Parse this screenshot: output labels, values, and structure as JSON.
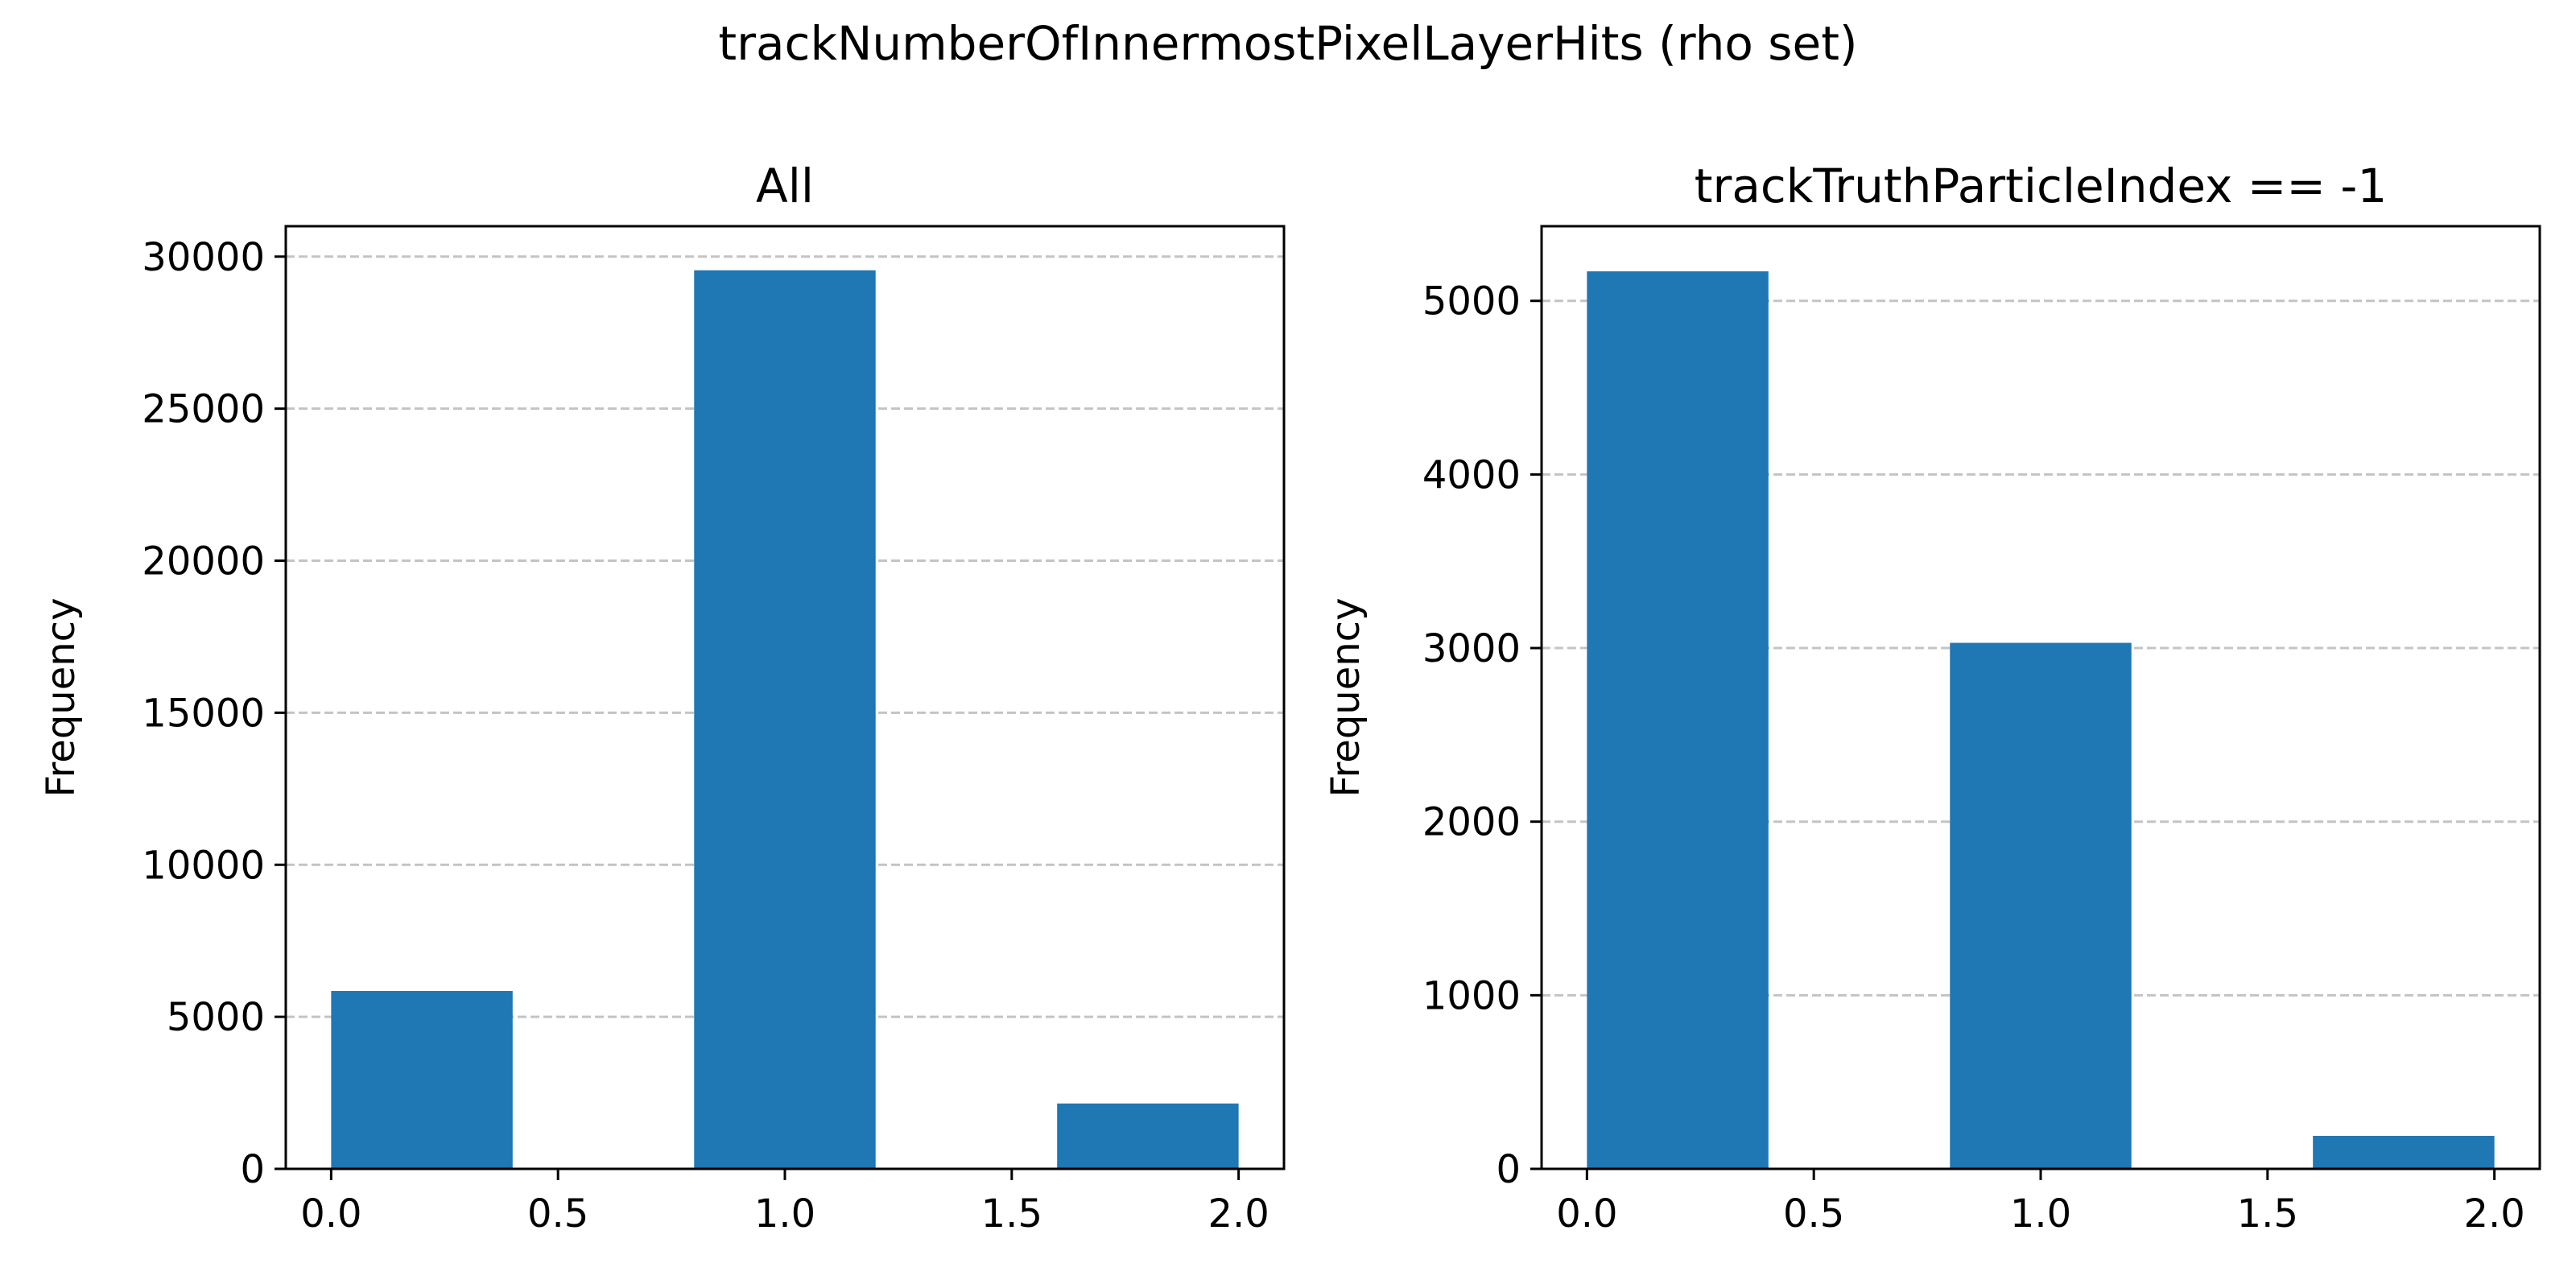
{
  "figure": {
    "suptitle": "trackNumberOfInnermostPixelLayerHits (rho set)"
  },
  "colors": {
    "bar": "#1f77b4",
    "grid": "#c4c4c4",
    "axis": "#000000",
    "background": "#ffffff"
  },
  "chart_data": [
    {
      "type": "bar",
      "title": "All",
      "xlabel": "",
      "ylabel": "Frequency",
      "x_centers": [
        0.2,
        1.0,
        1.8
      ],
      "bar_width": 0.4,
      "values": [
        5850,
        29550,
        2150
      ],
      "xlim": [
        -0.1,
        2.1
      ],
      "ylim": [
        0,
        31000
      ],
      "xticks": [
        0.0,
        0.5,
        1.0,
        1.5,
        2.0
      ],
      "xtick_labels": [
        "0.0",
        "0.5",
        "1.0",
        "1.5",
        "2.0"
      ],
      "yticks": [
        0,
        5000,
        10000,
        15000,
        20000,
        25000,
        30000
      ],
      "ytick_labels": [
        "0",
        "5000",
        "10000",
        "15000",
        "20000",
        "25000",
        "30000"
      ],
      "grid": "y-dashed"
    },
    {
      "type": "bar",
      "title": "trackTruthParticleIndex == -1",
      "xlabel": "",
      "ylabel": "Frequency",
      "x_centers": [
        0.2,
        1.0,
        1.8
      ],
      "bar_width": 0.4,
      "values": [
        5170,
        3030,
        190
      ],
      "xlim": [
        -0.1,
        2.1
      ],
      "ylim": [
        0,
        5430
      ],
      "xticks": [
        0.0,
        0.5,
        1.0,
        1.5,
        2.0
      ],
      "xtick_labels": [
        "0.0",
        "0.5",
        "1.0",
        "1.5",
        "2.0"
      ],
      "yticks": [
        0,
        1000,
        2000,
        3000,
        4000,
        5000
      ],
      "ytick_labels": [
        "0",
        "1000",
        "2000",
        "3000",
        "4000",
        "5000"
      ],
      "grid": "y-dashed"
    }
  ]
}
